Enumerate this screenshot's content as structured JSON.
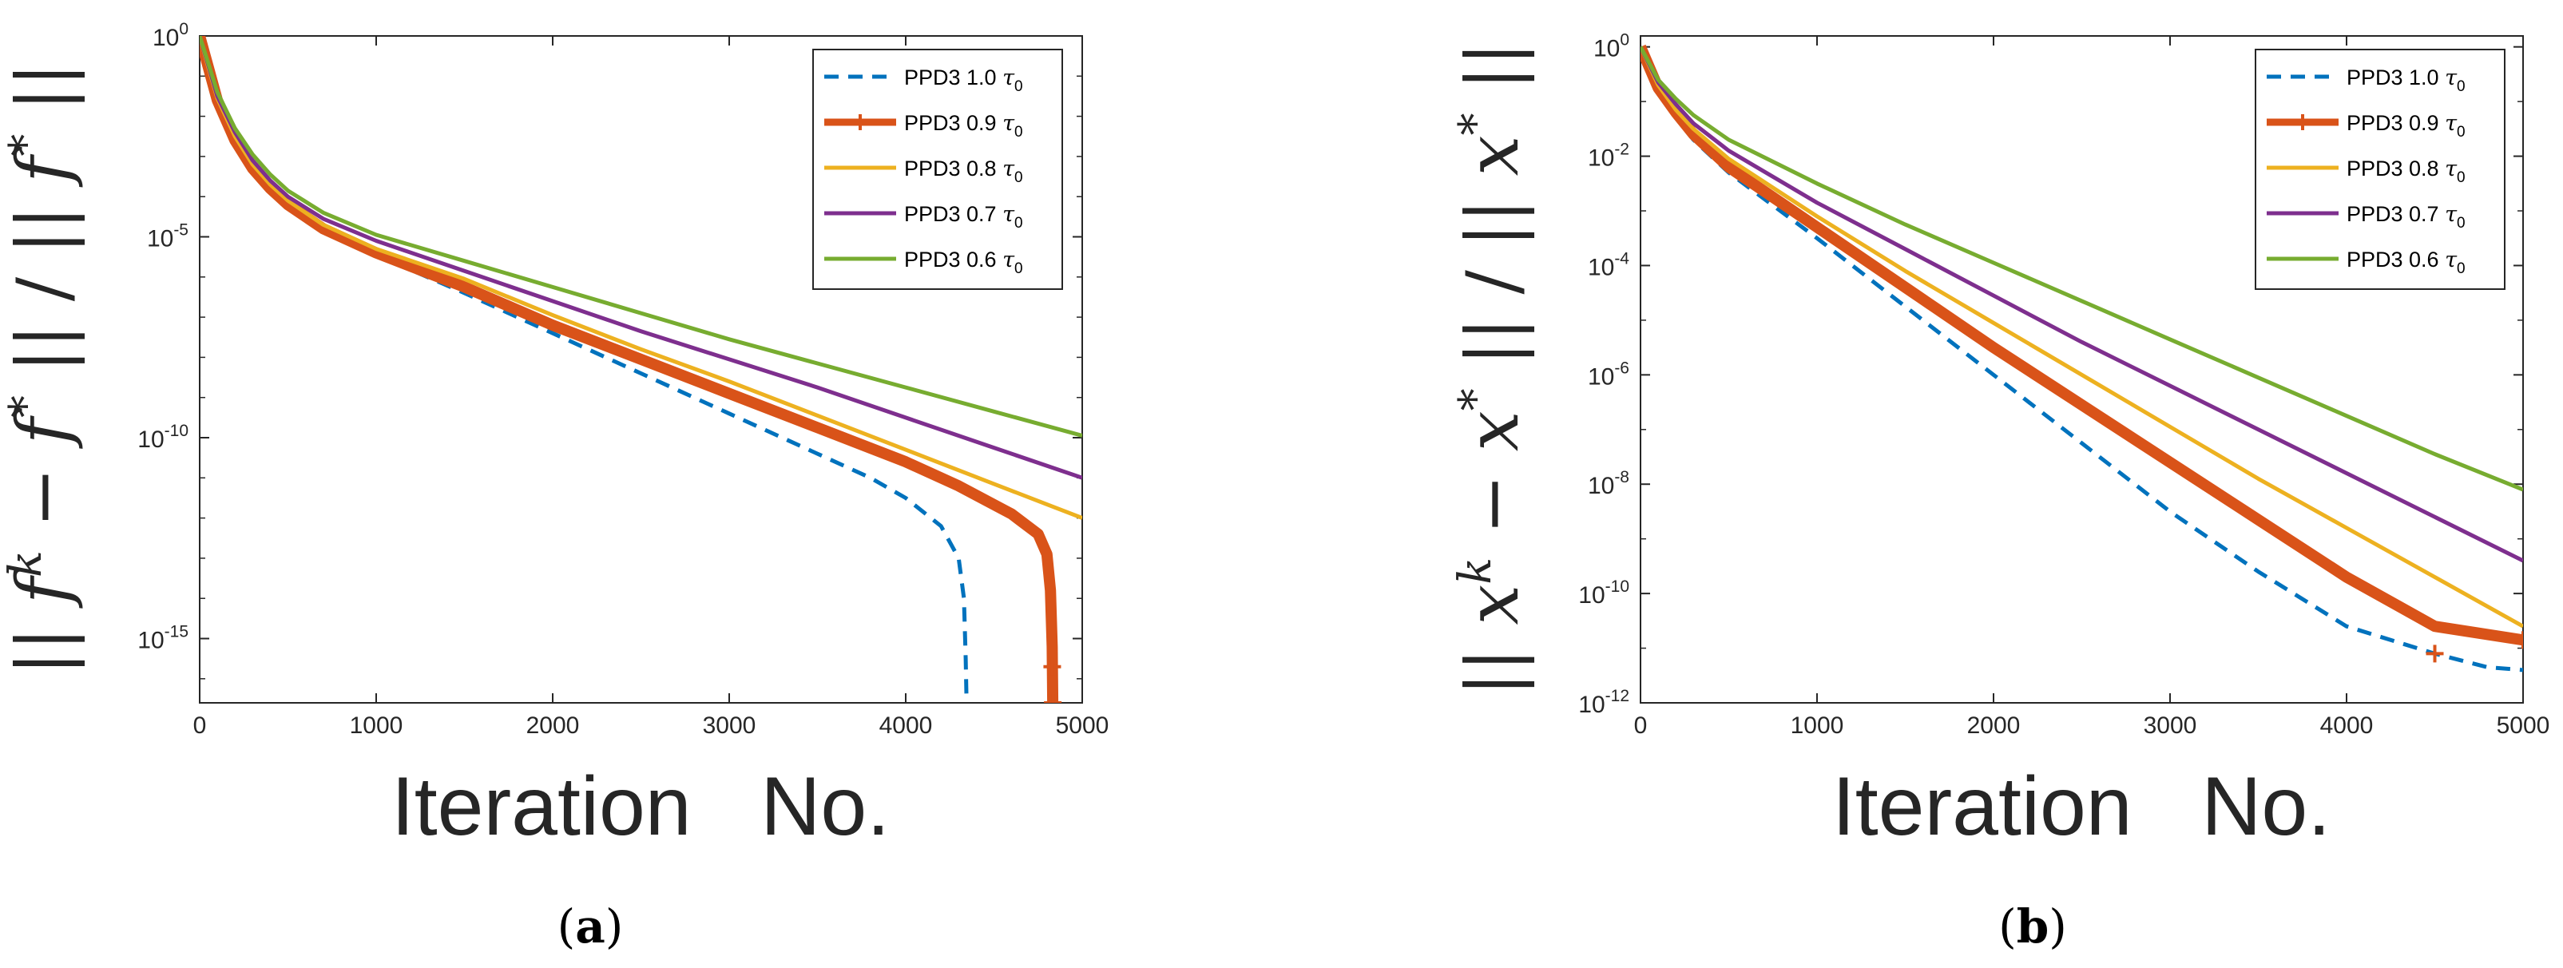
{
  "chart_data": [
    {
      "type": "line",
      "panel": "a",
      "caption_letter": "a",
      "caption_open": "(",
      "caption_close": ")",
      "xlabel": "Iteration   No.",
      "ylabel": "|| f^k − f* || / || f* ||",
      "ylabel_parts": [
        "||",
        "f",
        "k",
        " − ",
        "f",
        "*",
        "||",
        "/",
        "||",
        "f",
        "*",
        "||"
      ],
      "yscale": "log",
      "xlim": [
        0,
        5000
      ],
      "ylim_exp": [
        -16.6,
        0
      ],
      "xticks": [
        0,
        1000,
        2000,
        3000,
        4000,
        5000
      ],
      "xtick_labels": [
        "0",
        "1000",
        "2000",
        "3000",
        "4000",
        "5000"
      ],
      "yticks_exp": [
        0,
        -5,
        -10,
        -15
      ],
      "ytick_base": "10",
      "ytick_exps": [
        "0",
        "-5",
        "-10",
        "-15"
      ],
      "legend_position": "top-right",
      "series": [
        {
          "name": "PPD3 1.0",
          "tau": "τ",
          "tau_sub": "0",
          "color": "#0072BD",
          "style": "dashed",
          "points": [
            [
              0,
              -0.1
            ],
            [
              50,
              -0.8
            ],
            [
              100,
              -1.6
            ],
            [
              200,
              -2.6
            ],
            [
              300,
              -3.3
            ],
            [
              400,
              -3.8
            ],
            [
              500,
              -4.2
            ],
            [
              700,
              -4.8
            ],
            [
              1000,
              -5.45
            ],
            [
              1500,
              -6.4
            ],
            [
              2000,
              -7.4
            ],
            [
              2500,
              -8.4
            ],
            [
              3000,
              -9.4
            ],
            [
              3500,
              -10.4
            ],
            [
              3800,
              -11.0
            ],
            [
              4000,
              -11.5
            ],
            [
              4200,
              -12.2
            ],
            [
              4300,
              -13.0
            ],
            [
              4330,
              -14.0
            ],
            [
              4340,
              -15.5
            ],
            [
              4345,
              -16.6
            ]
          ]
        },
        {
          "name": "PPD3 0.9",
          "tau": "τ",
          "tau_sub": "0",
          "color": "#D95319",
          "style": "thick-marker",
          "points": [
            [
              0,
              0
            ],
            [
              50,
              -0.8
            ],
            [
              100,
              -1.6
            ],
            [
              200,
              -2.6
            ],
            [
              300,
              -3.3
            ],
            [
              400,
              -3.8
            ],
            [
              500,
              -4.2
            ],
            [
              700,
              -4.8
            ],
            [
              1000,
              -5.4
            ],
            [
              1500,
              -6.25
            ],
            [
              2000,
              -7.2
            ],
            [
              2500,
              -8.05
            ],
            [
              3000,
              -8.9
            ],
            [
              3500,
              -9.75
            ],
            [
              4000,
              -10.6
            ],
            [
              4300,
              -11.2
            ],
            [
              4600,
              -11.9
            ],
            [
              4750,
              -12.4
            ],
            [
              4800,
              -12.9
            ],
            [
              4820,
              -13.8
            ],
            [
              4830,
              -15.2
            ],
            [
              4833,
              -16.6
            ]
          ]
        },
        {
          "name": "PPD3 0.8",
          "tau": "τ",
          "tau_sub": "0",
          "color": "#EDB120",
          "style": "solid",
          "points": [
            [
              0,
              0
            ],
            [
              50,
              -0.8
            ],
            [
              100,
              -1.55
            ],
            [
              200,
              -2.5
            ],
            [
              300,
              -3.2
            ],
            [
              400,
              -3.7
            ],
            [
              500,
              -4.1
            ],
            [
              700,
              -4.7
            ],
            [
              1000,
              -5.3
            ],
            [
              1500,
              -6.05
            ],
            [
              2000,
              -6.95
            ],
            [
              2500,
              -7.8
            ],
            [
              3000,
              -8.6
            ],
            [
              3500,
              -9.45
            ],
            [
              4000,
              -10.3
            ],
            [
              4500,
              -11.15
            ],
            [
              5000,
              -12.0
            ]
          ]
        },
        {
          "name": "PPD3 0.7",
          "tau": "τ",
          "tau_sub": "0",
          "color": "#7E2F8E",
          "style": "solid",
          "points": [
            [
              0,
              0
            ],
            [
              50,
              -0.75
            ],
            [
              100,
              -1.5
            ],
            [
              200,
              -2.4
            ],
            [
              300,
              -3.1
            ],
            [
              400,
              -3.6
            ],
            [
              500,
              -4.0
            ],
            [
              700,
              -4.55
            ],
            [
              1000,
              -5.1
            ],
            [
              1500,
              -5.85
            ],
            [
              2000,
              -6.6
            ],
            [
              2500,
              -7.35
            ],
            [
              3000,
              -8.05
            ],
            [
              3500,
              -8.75
            ],
            [
              4000,
              -9.5
            ],
            [
              4500,
              -10.25
            ],
            [
              5000,
              -11.0
            ]
          ]
        },
        {
          "name": "PPD3 0.6",
          "tau": "τ",
          "tau_sub": "0",
          "color": "#77AC30",
          "style": "solid",
          "points": [
            [
              0,
              0
            ],
            [
              50,
              -0.7
            ],
            [
              100,
              -1.4
            ],
            [
              200,
              -2.3
            ],
            [
              300,
              -2.95
            ],
            [
              400,
              -3.45
            ],
            [
              500,
              -3.85
            ],
            [
              700,
              -4.4
            ],
            [
              1000,
              -4.95
            ],
            [
              1500,
              -5.6
            ],
            [
              2000,
              -6.25
            ],
            [
              2500,
              -6.9
            ],
            [
              3000,
              -7.55
            ],
            [
              3500,
              -8.15
            ],
            [
              4000,
              -8.75
            ],
            [
              4500,
              -9.35
            ],
            [
              5000,
              -9.95
            ]
          ]
        }
      ]
    },
    {
      "type": "line",
      "panel": "b",
      "caption_letter": "b",
      "caption_open": "(",
      "caption_close": ")",
      "xlabel": "Iteration   No.",
      "ylabel": "|| x^k − x* || / || x* ||",
      "ylabel_parts": [
        "||",
        "x",
        "k",
        " − ",
        "x",
        "*",
        "||",
        "/",
        "||",
        "x",
        "*",
        "||"
      ],
      "yscale": "log",
      "xlim": [
        0,
        5000
      ],
      "ylim_exp": [
        -12,
        0.2
      ],
      "xticks": [
        0,
        1000,
        2000,
        3000,
        4000,
        5000
      ],
      "xtick_labels": [
        "0",
        "1000",
        "2000",
        "3000",
        "4000",
        "5000"
      ],
      "yticks_exp": [
        0,
        -2,
        -4,
        -6,
        -8,
        -10,
        -12
      ],
      "ytick_base": "10",
      "ytick_exps": [
        "0",
        "-2",
        "-4",
        "-6",
        "-8",
        "-10",
        "-12"
      ],
      "legend_position": "top-right",
      "series": [
        {
          "name": "PPD3 1.0",
          "tau": "τ",
          "tau_sub": "0",
          "color": "#0072BD",
          "style": "dashed",
          "points": [
            [
              0,
              0
            ],
            [
              100,
              -0.8
            ],
            [
              200,
              -1.3
            ],
            [
              300,
              -1.7
            ],
            [
              500,
              -2.3
            ],
            [
              1000,
              -3.5
            ],
            [
              1500,
              -4.75
            ],
            [
              2000,
              -6.0
            ],
            [
              2500,
              -7.25
            ],
            [
              3000,
              -8.5
            ],
            [
              3500,
              -9.6
            ],
            [
              4000,
              -10.6
            ],
            [
              4500,
              -11.1
            ],
            [
              4800,
              -11.35
            ],
            [
              5000,
              -11.4
            ]
          ]
        },
        {
          "name": "PPD3 0.9",
          "tau": "τ",
          "tau_sub": "0",
          "color": "#D95319",
          "style": "thick-marker",
          "points": [
            [
              0,
              0
            ],
            [
              100,
              -0.75
            ],
            [
              200,
              -1.2
            ],
            [
              300,
              -1.6
            ],
            [
              500,
              -2.2
            ],
            [
              1000,
              -3.3
            ],
            [
              1500,
              -4.4
            ],
            [
              2000,
              -5.5
            ],
            [
              2500,
              -6.55
            ],
            [
              3000,
              -7.6
            ],
            [
              3500,
              -8.65
            ],
            [
              4000,
              -9.7
            ],
            [
              4500,
              -10.6
            ],
            [
              5000,
              -10.85
            ]
          ]
        },
        {
          "name": "PPD3 0.8",
          "tau": "τ",
          "tau_sub": "0",
          "color": "#EDB120",
          "style": "solid",
          "points": [
            [
              0,
              0
            ],
            [
              100,
              -0.7
            ],
            [
              200,
              -1.15
            ],
            [
              300,
              -1.5
            ],
            [
              500,
              -2.05
            ],
            [
              1000,
              -3.1
            ],
            [
              1500,
              -4.1
            ],
            [
              2000,
              -5.05
            ],
            [
              2500,
              -6.0
            ],
            [
              3000,
              -6.95
            ],
            [
              3500,
              -7.9
            ],
            [
              4000,
              -8.8
            ],
            [
              4500,
              -9.7
            ],
            [
              5000,
              -10.6
            ]
          ]
        },
        {
          "name": "PPD3 0.7",
          "tau": "τ",
          "tau_sub": "0",
          "color": "#7E2F8E",
          "style": "solid",
          "points": [
            [
              0,
              0
            ],
            [
              100,
              -0.65
            ],
            [
              200,
              -1.05
            ],
            [
              300,
              -1.4
            ],
            [
              500,
              -1.9
            ],
            [
              1000,
              -2.85
            ],
            [
              1500,
              -3.7
            ],
            [
              2000,
              -4.55
            ],
            [
              2500,
              -5.4
            ],
            [
              3000,
              -6.2
            ],
            [
              3500,
              -7.0
            ],
            [
              4000,
              -7.8
            ],
            [
              4500,
              -8.6
            ],
            [
              5000,
              -9.4
            ]
          ]
        },
        {
          "name": "PPD3 0.6",
          "tau": "τ",
          "tau_sub": "0",
          "color": "#77AC30",
          "style": "solid",
          "points": [
            [
              0,
              0
            ],
            [
              100,
              -0.6
            ],
            [
              200,
              -0.95
            ],
            [
              300,
              -1.25
            ],
            [
              500,
              -1.7
            ],
            [
              1000,
              -2.5
            ],
            [
              1500,
              -3.25
            ],
            [
              2000,
              -3.95
            ],
            [
              2500,
              -4.65
            ],
            [
              3000,
              -5.35
            ],
            [
              3500,
              -6.05
            ],
            [
              4000,
              -6.75
            ],
            [
              4500,
              -7.45
            ],
            [
              5000,
              -8.1
            ]
          ]
        }
      ]
    }
  ]
}
